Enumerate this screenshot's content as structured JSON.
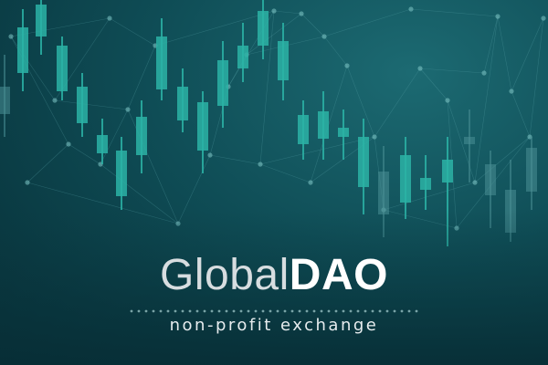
{
  "logo": {
    "word_light": "Global",
    "word_bold": "DAO",
    "tagline": "non-profit exchange"
  },
  "colors": {
    "candle_light": "#2bb3a6",
    "candle_dim": "#4a8f95",
    "network_line": "#5aa3a8",
    "network_node": "#7fc7c6"
  }
}
